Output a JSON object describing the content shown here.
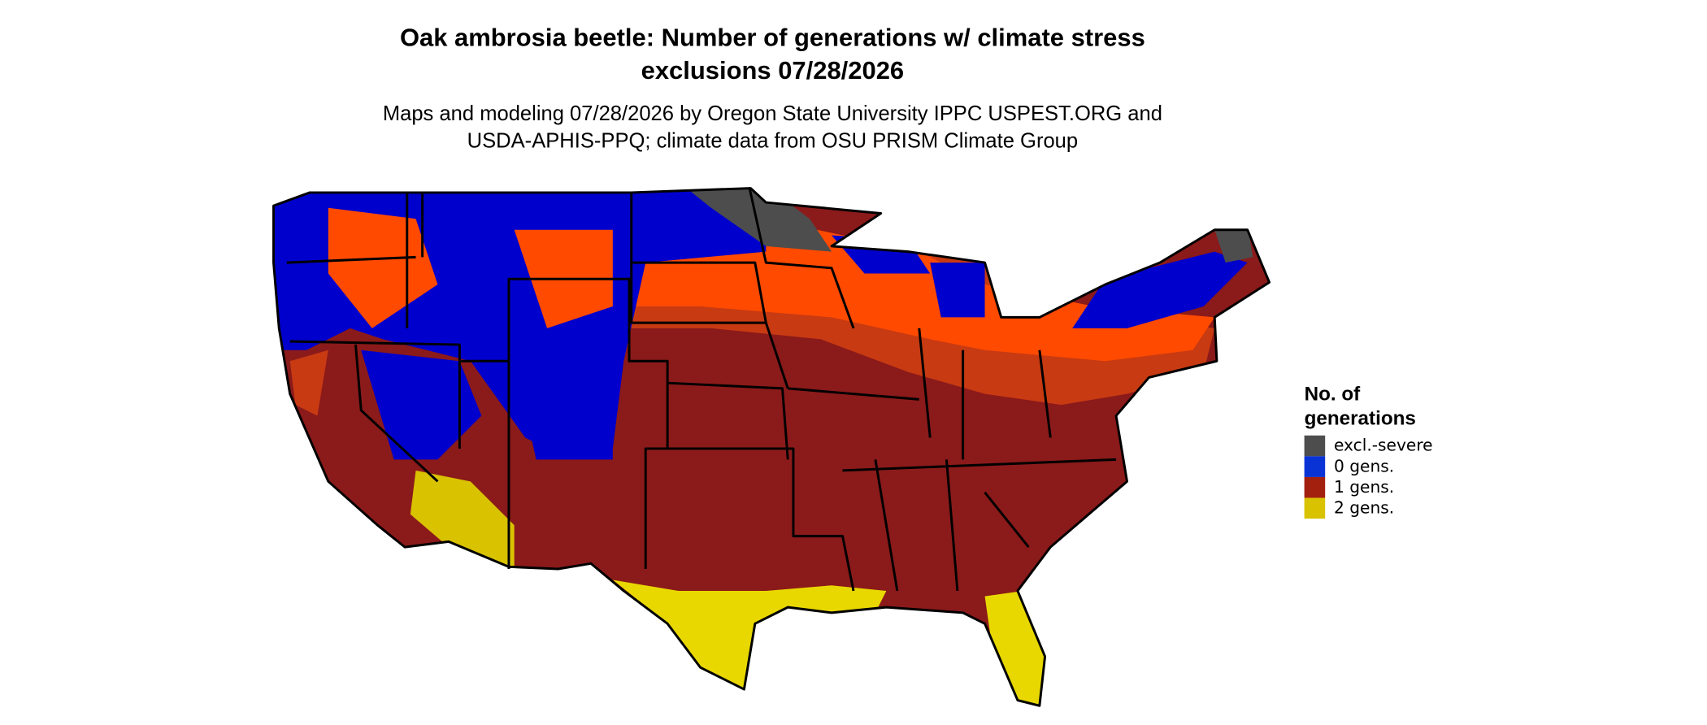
{
  "map": {
    "title": [
      "Oak ambrosia beetle: Number of generations w/ climate stress",
      "exclusions 07/28/2026"
    ],
    "subtitle": [
      "Maps and modeling 07/28/2026 by Oregon State University IPPC USPEST.ORG and",
      "USDA-APHIS-PPQ; climate data from OSU PRISM Climate Group"
    ],
    "legend": {
      "title": [
        "No. of",
        "generations"
      ],
      "items": [
        {
          "label": "excl.-severe",
          "color": "#4d4d4d"
        },
        {
          "label": "0 gens.",
          "color": "#0a33d6"
        },
        {
          "label": "1 gens.",
          "color": "#a3200f"
        },
        {
          "label": "2 gens.",
          "color": "#d9c200"
        }
      ]
    }
  }
}
